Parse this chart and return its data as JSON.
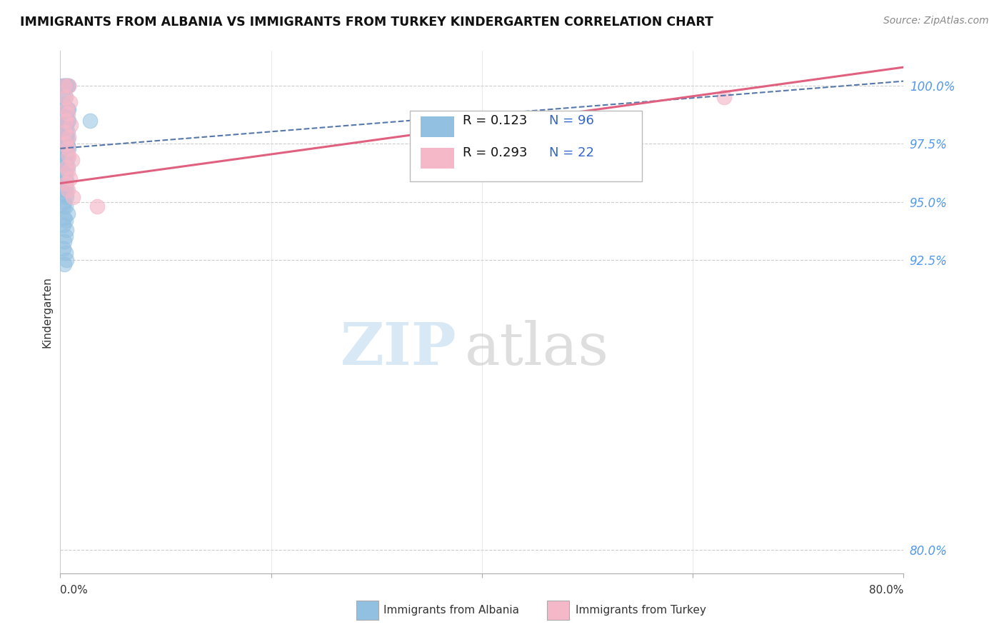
{
  "title": "IMMIGRANTS FROM ALBANIA VS IMMIGRANTS FROM TURKEY KINDERGARTEN CORRELATION CHART",
  "source": "Source: ZipAtlas.com",
  "ylabel": "Kindergarten",
  "yticks": [
    80.0,
    92.5,
    95.0,
    97.5,
    100.0
  ],
  "ytick_labels": [
    "80.0%",
    "92.5%",
    "95.0%",
    "97.5%",
    "100.0%"
  ],
  "xlim": [
    0.0,
    80.0
  ],
  "ylim": [
    79.0,
    101.5
  ],
  "albania_R": 0.123,
  "albania_N": 96,
  "turkey_R": 0.293,
  "turkey_N": 22,
  "albania_color": "#92c0e0",
  "turkey_color": "#f5b8c8",
  "albania_line_color": "#5577aa",
  "turkey_line_color": "#e06080",
  "alb_line_x0": 0.0,
  "alb_line_y0": 97.3,
  "alb_line_x1": 80.0,
  "alb_line_y1": 100.2,
  "tur_line_x0": 0.0,
  "tur_line_y0": 95.8,
  "tur_line_x1": 80.0,
  "tur_line_y1": 100.8,
  "legend_label_albania": "Immigrants from Albania",
  "legend_label_turkey": "Immigrants from Turkey",
  "albania_x": [
    0.3,
    0.5,
    0.6,
    0.4,
    0.7,
    0.2,
    0.8,
    0.5,
    0.3,
    0.6,
    0.4,
    0.5,
    0.6,
    0.7,
    0.8,
    0.3,
    0.4,
    0.5,
    0.6,
    0.3,
    0.2,
    0.4,
    0.5,
    0.6,
    0.7,
    0.8,
    0.3,
    0.4,
    0.5,
    0.6,
    0.2,
    0.3,
    0.4,
    0.5,
    0.6,
    0.7,
    0.5,
    0.4,
    0.3,
    0.6,
    0.7,
    0.5,
    0.4,
    0.3,
    0.2,
    0.5,
    0.6,
    0.7,
    0.8,
    0.4,
    0.3,
    0.5,
    0.6,
    0.4,
    0.3,
    0.5,
    0.6,
    0.7,
    0.4,
    0.5,
    0.3,
    0.4,
    0.5,
    0.6,
    0.7,
    0.5,
    0.4,
    0.3,
    0.2,
    0.5,
    0.4,
    0.3,
    0.5,
    0.6,
    0.4,
    0.5,
    0.3,
    0.6,
    0.4,
    0.5,
    2.8,
    0.6,
    0.4,
    0.3,
    0.5,
    0.7,
    0.4,
    0.5,
    0.3,
    0.6,
    0.5,
    0.4,
    0.3,
    0.5,
    0.6,
    0.4
  ],
  "albania_y": [
    100.0,
    100.0,
    100.0,
    100.0,
    100.0,
    100.0,
    100.0,
    99.5,
    99.5,
    100.0,
    99.2,
    99.0,
    99.0,
    99.0,
    99.0,
    98.8,
    98.8,
    98.7,
    98.7,
    98.7,
    98.5,
    98.5,
    98.5,
    98.5,
    98.5,
    98.5,
    98.3,
    98.3,
    98.3,
    98.3,
    98.2,
    98.2,
    98.2,
    98.1,
    98.0,
    98.0,
    97.8,
    97.8,
    97.8,
    97.8,
    97.7,
    97.7,
    97.7,
    97.5,
    97.5,
    97.5,
    97.5,
    97.4,
    97.3,
    97.3,
    97.2,
    97.2,
    97.1,
    97.0,
    97.0,
    97.0,
    97.0,
    96.9,
    96.8,
    96.8,
    96.7,
    96.7,
    96.7,
    96.5,
    96.5,
    96.4,
    96.3,
    96.3,
    96.2,
    96.2,
    96.0,
    96.0,
    96.0,
    95.9,
    95.8,
    95.7,
    95.7,
    95.5,
    95.5,
    95.3,
    98.5,
    95.2,
    95.0,
    94.8,
    94.8,
    94.5,
    94.3,
    94.2,
    94.0,
    93.8,
    93.5,
    93.3,
    93.0,
    92.8,
    92.5,
    92.3
  ],
  "turkey_x": [
    0.4,
    0.8,
    0.5,
    0.9,
    0.6,
    0.7,
    0.5,
    1.0,
    0.4,
    0.8,
    0.5,
    0.7,
    0.8,
    1.1,
    0.6,
    0.7,
    0.9,
    0.5,
    0.7,
    1.2,
    3.5,
    63.0
  ],
  "turkey_y": [
    100.0,
    100.0,
    99.5,
    99.3,
    99.0,
    98.8,
    98.5,
    98.3,
    98.0,
    97.8,
    97.5,
    97.3,
    97.0,
    96.8,
    96.5,
    96.3,
    96.0,
    95.8,
    95.5,
    95.2,
    94.8,
    99.5
  ]
}
